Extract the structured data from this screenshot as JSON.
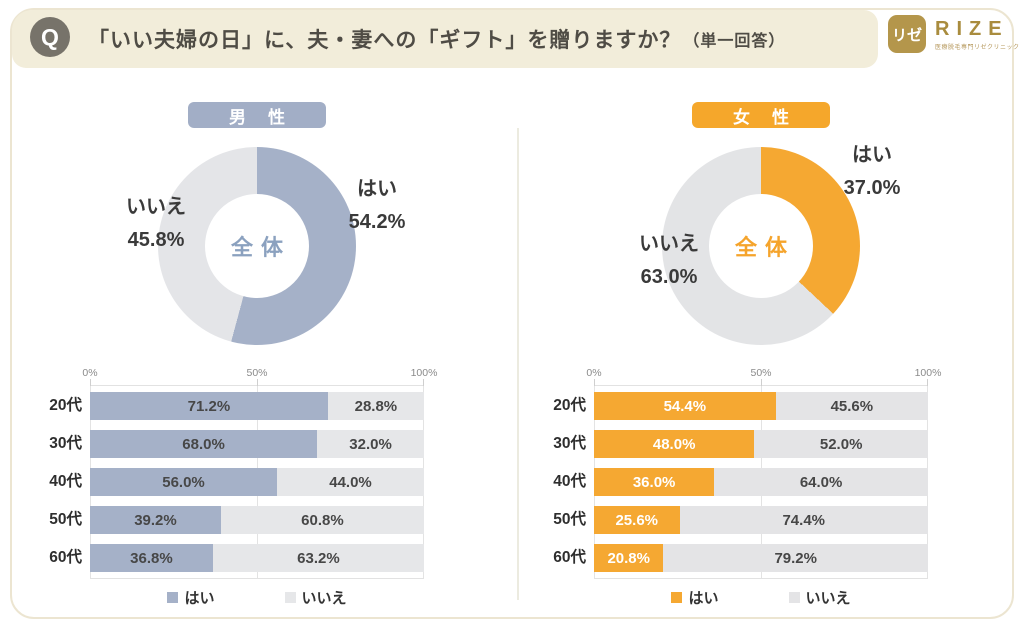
{
  "header": {
    "q_badge": "Q",
    "title_main": "「いい夫婦の日」に、夫・妻への「ギフト」を贈りますか？",
    "title_note": "（単一回答）",
    "logo": {
      "mark": "リゼ",
      "brand": "RIZE",
      "tagline": "医療脱毛専門リゼクリニック"
    }
  },
  "colors": {
    "band_bg": "#f2edda",
    "card_border": "#ece5d1",
    "q_circle": "#77736a",
    "logo_gold": "#b4964b",
    "male_accent": "#a5b1c8",
    "female_accent": "#f5a832",
    "neutral_gray": "#e5e6e8",
    "text_dark": "#3f3f3f"
  },
  "panels": [
    {
      "badge": "男性",
      "center_label": "全体",
      "donut_labels": {
        "yes_label": "はい",
        "yes_value": "54.2%",
        "no_label": "いいえ",
        "no_value": "45.8%"
      },
      "legend": [
        {
          "label": "はい"
        },
        {
          "label": "いいえ"
        }
      ]
    },
    {
      "badge": "女性",
      "center_label": "全体",
      "donut_labels": {
        "yes_label": "はい",
        "yes_value": "37.0%",
        "no_label": "いいえ",
        "no_value": "63.0%"
      },
      "legend": [
        {
          "label": "はい"
        },
        {
          "label": "いいえ"
        }
      ]
    }
  ],
  "bar_axis": {
    "ticks": [
      "0%",
      "50%",
      "100%"
    ]
  },
  "chart_data": [
    {
      "type": "pie",
      "subtype": "donut",
      "group": "男性",
      "labels": [
        "はい",
        "いいえ"
      ],
      "values": [
        54.2,
        45.8
      ],
      "colors": [
        "#a5b1c8",
        "#e4e5e8"
      ],
      "center_label": "全体",
      "start_angle": "12-oclock-clockwise"
    },
    {
      "type": "pie",
      "subtype": "donut",
      "group": "女性",
      "labels": [
        "はい",
        "いいえ"
      ],
      "values": [
        37.0,
        63.0
      ],
      "colors": [
        "#f5a832",
        "#e3e4e6"
      ],
      "center_label": "全体",
      "start_angle": "12-oclock-clockwise"
    },
    {
      "type": "bar",
      "orientation": "horizontal",
      "stacked": true,
      "group": "男性",
      "categories": [
        "20代",
        "30代",
        "40代",
        "50代",
        "60代"
      ],
      "series": [
        {
          "name": "はい",
          "color": "#a5b1c8",
          "text_color": "#474747",
          "values": [
            71.2,
            68.0,
            56.0,
            39.2,
            36.8
          ]
        },
        {
          "name": "いいえ",
          "color": "#e6e7e9",
          "text_color": "#474747",
          "values": [
            28.8,
            32.0,
            44.0,
            60.8,
            63.2
          ]
        }
      ],
      "xlim": [
        0,
        100
      ],
      "xticks": [
        "0%",
        "50%",
        "100%"
      ],
      "grid": true,
      "legend_position": "bottom"
    },
    {
      "type": "bar",
      "orientation": "horizontal",
      "stacked": true,
      "group": "女性",
      "categories": [
        "20代",
        "30代",
        "40代",
        "50代",
        "60代"
      ],
      "series": [
        {
          "name": "はい",
          "color": "#f5a832",
          "text_color": "#ffffff",
          "values": [
            54.4,
            48.0,
            36.0,
            25.6,
            20.8
          ]
        },
        {
          "name": "いいえ",
          "color": "#e4e4e6",
          "text_color": "#474747",
          "values": [
            45.6,
            52.0,
            64.0,
            74.4,
            79.2
          ]
        }
      ],
      "xlim": [
        0,
        100
      ],
      "xticks": [
        "0%",
        "50%",
        "100%"
      ],
      "grid": true,
      "legend_position": "bottom"
    }
  ]
}
